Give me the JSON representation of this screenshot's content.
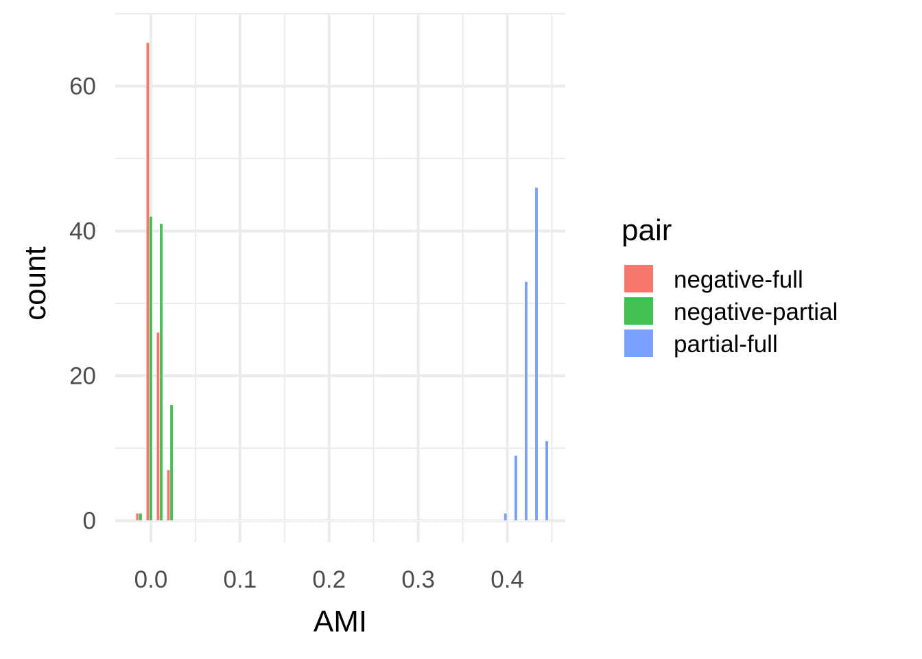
{
  "chart_data": {
    "type": "bar",
    "xlabel": "AMI",
    "ylabel": "count",
    "xlim": [
      -0.04,
      0.465
    ],
    "ylim": [
      -3,
      70
    ],
    "x_ticks": [
      0.0,
      0.1,
      0.2,
      0.3,
      0.4
    ],
    "x_tick_labels": [
      "0.0",
      "0.1",
      "0.2",
      "0.3",
      "0.4"
    ],
    "y_ticks": [
      0,
      20,
      40,
      60
    ],
    "y_tick_labels": [
      "0",
      "20",
      "40",
      "60"
    ],
    "grid": true,
    "legend_placement": "right",
    "legend_title": "pair",
    "bin_width": 0.0116,
    "bar_width_fraction": 0.9,
    "bins": [
      -0.0116,
      0.0,
      0.0116,
      0.0232,
      0.0348,
      0.0464,
      0.058,
      0.0696,
      0.0812,
      0.0928,
      0.1044,
      0.116,
      0.1276,
      0.1392,
      0.1508,
      0.1624,
      0.174,
      0.1856,
      0.1972,
      0.2088,
      0.2204,
      0.232,
      0.2436,
      0.2552,
      0.2668,
      0.2784,
      0.29,
      0.3016,
      0.3132,
      0.3248,
      0.3364,
      0.348,
      0.3596,
      0.3712,
      0.3828,
      0.3944,
      0.406,
      0.4176,
      0.4292,
      0.4408
    ],
    "series": [
      {
        "name": "negative-full",
        "color": "#F8766D",
        "values": [
          1,
          66,
          26,
          7,
          0,
          0,
          0,
          0,
          0,
          0,
          0,
          0,
          0,
          0,
          0,
          0,
          0,
          0,
          0,
          0,
          0,
          0,
          0,
          0,
          0,
          0,
          0,
          0,
          0,
          0,
          0,
          0,
          0,
          0,
          0,
          0,
          0,
          0,
          0,
          0
        ]
      },
      {
        "name": "negative-partial",
        "color": "#44BF52",
        "values": [
          1,
          42,
          41,
          16,
          0,
          0,
          0,
          0,
          0,
          0,
          0,
          0,
          0,
          0,
          0,
          0,
          0,
          0,
          0,
          0,
          0,
          0,
          0,
          0,
          0,
          0,
          0,
          0,
          0,
          0,
          0,
          0,
          0,
          0,
          0,
          0,
          0,
          0,
          0,
          0
        ]
      },
      {
        "name": "partial-full",
        "color": "#7CA0FF",
        "values": [
          0,
          0,
          0,
          0,
          0,
          0,
          0,
          0,
          0,
          0,
          0,
          0,
          0,
          0,
          0,
          0,
          0,
          0,
          0,
          0,
          0,
          0,
          0,
          0,
          0,
          0,
          0,
          0,
          0,
          0,
          0,
          0,
          0,
          0,
          0,
          1,
          9,
          33,
          46,
          11
        ]
      }
    ]
  }
}
